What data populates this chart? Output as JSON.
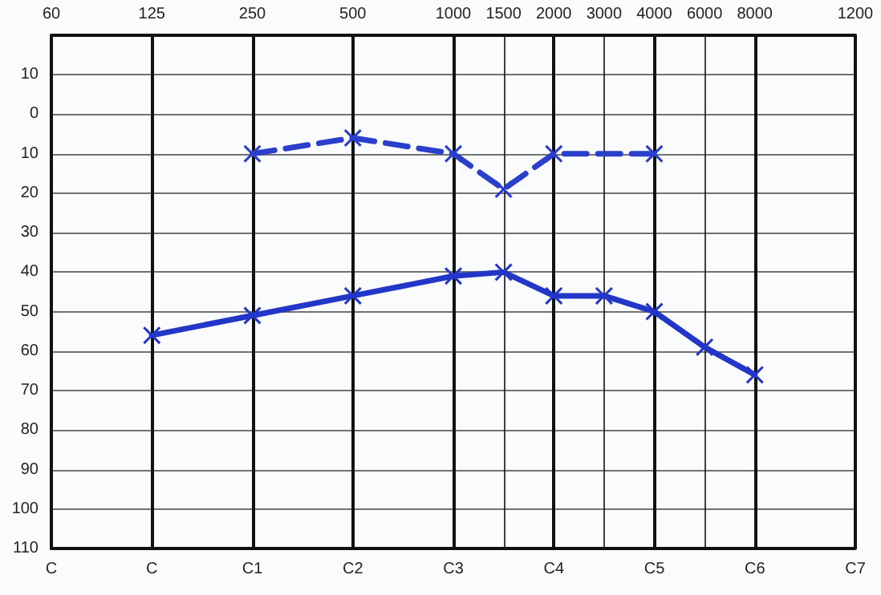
{
  "chart_data": {
    "type": "line",
    "categories": [
      "60",
      null,
      "125",
      null,
      "250",
      null,
      "500",
      null,
      "1000",
      "1500",
      "2000",
      "3000",
      "4000",
      "6000",
      "8000",
      null,
      "1200"
    ],
    "annotations": [
      "C",
      "C",
      "C1",
      "C2",
      "C3",
      "C4",
      "C5",
      "C6",
      "C7"
    ],
    "ylim": [
      110,
      -20
    ],
    "yticks": [
      {
        "value": -10,
        "label": "10"
      },
      0,
      10,
      20,
      30,
      40,
      50,
      60,
      70,
      80,
      90,
      100,
      110
    ],
    "grid": true,
    "marker": "cross",
    "series": [
      {
        "color": "#2a3fcc",
        "line_style": "dashed",
        "values": [
          null,
          null,
          null,
          null,
          10,
          null,
          6,
          null,
          10,
          19,
          10,
          null,
          10,
          null,
          null,
          null,
          null
        ]
      },
      {
        "color": "#2236c8",
        "line_style": "solid",
        "values": [
          null,
          null,
          56,
          null,
          51,
          null,
          46,
          null,
          41,
          40,
          46,
          46,
          50,
          59,
          66,
          null,
          null
        ]
      }
    ]
  }
}
